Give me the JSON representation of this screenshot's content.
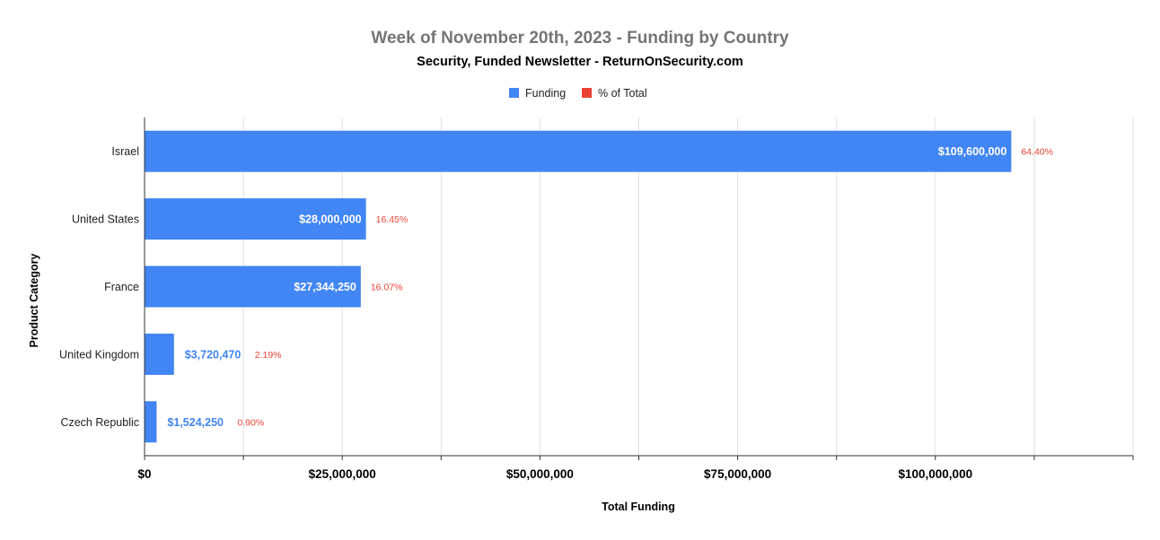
{
  "chart_data": {
    "type": "bar",
    "orientation": "horizontal",
    "title": "Week of November 20th, 2023 - Funding by Country",
    "subtitle": "Security, Funded Newsletter - ReturnOnSecurity.com",
    "xlabel": "Total Funding",
    "ylabel": "Product Category",
    "legend_position": "top",
    "grid": true,
    "xlim": [
      0,
      125000000
    ],
    "x_ticks": [
      0,
      25000000,
      50000000,
      75000000,
      100000000
    ],
    "x_tick_labels": [
      "$0",
      "$25,000,000",
      "$50,000,000",
      "$75,000,000",
      "$100,000,000"
    ],
    "categories": [
      "Israel",
      "United States",
      "France",
      "United Kingdom",
      "Czech Republic"
    ],
    "series": [
      {
        "name": "Funding",
        "color": "#4285f4",
        "values": [
          109600000,
          28000000,
          27344250,
          3720470,
          1524250
        ],
        "labels": [
          "$109,600,000",
          "$28,000,000",
          "$27,344,250",
          "$3,720,470",
          "$1,524,250"
        ]
      },
      {
        "name": "% of Total",
        "color": "#ea4335",
        "values": [
          64.4,
          16.45,
          16.07,
          2.19,
          0.9
        ],
        "labels": [
          "64.40%",
          "16.45%",
          "16.07%",
          "2.19%",
          "0.90%"
        ]
      }
    ]
  }
}
